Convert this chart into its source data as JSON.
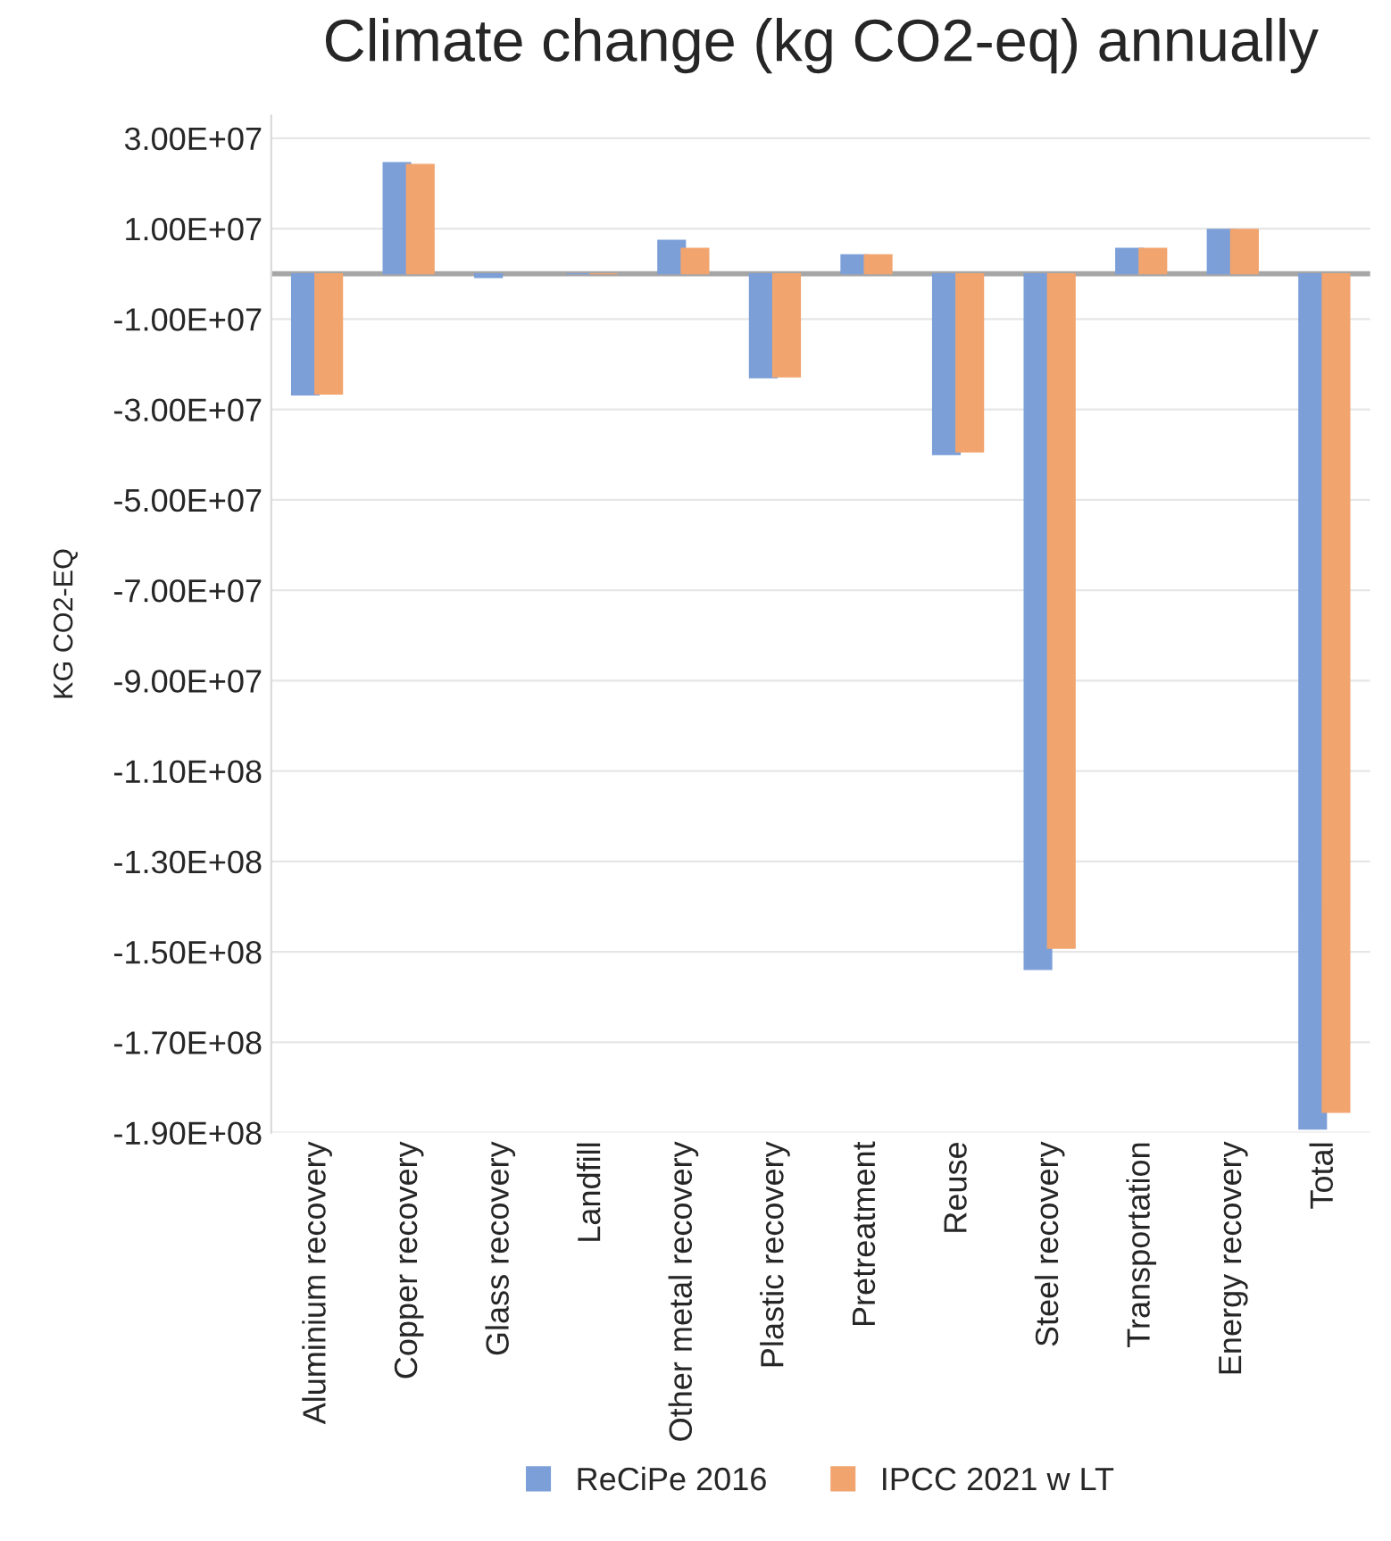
{
  "chart_data": {
    "type": "bar",
    "title": "Climate change (kg CO2-eq) annually",
    "ylabel": "KG CO2-EQ",
    "categories": [
      "Aluminium recovery",
      "Copper recovery",
      "Glass recovery",
      "Landfill",
      "Other metal recovery",
      "Plastic recovery",
      "Pretreatment",
      "Reuse",
      "Steel recovery",
      "Transportation",
      "Energy recovery",
      "Total"
    ],
    "series": [
      {
        "name": "ReCiPe 2016",
        "color": "#7c9fd8",
        "values": [
          -26800000,
          24600000,
          -800000,
          0,
          7400000,
          -23000000,
          4200000,
          -40000000,
          -153900000,
          5600000,
          9800000,
          -189200000
        ]
      },
      {
        "name": "IPCC 2021 w LT",
        "color": "#f2a46e",
        "values": [
          -26600000,
          24200000,
          null,
          0,
          5600000,
          -22800000,
          4200000,
          -39400000,
          -149200000,
          5600000,
          9800000,
          -185500000
        ]
      }
    ],
    "ylim": [
      -190000000,
      35000000
    ],
    "yticks": [
      {
        "value": 30000000,
        "label": "3.00E+07"
      },
      {
        "value": 10000000,
        "label": "1.00E+07"
      },
      {
        "value": -10000000,
        "label": "-1.00E+07"
      },
      {
        "value": -30000000,
        "label": "-3.00E+07"
      },
      {
        "value": -50000000,
        "label": "-5.00E+07"
      },
      {
        "value": -70000000,
        "label": "-7.00E+07"
      },
      {
        "value": -90000000,
        "label": "-9.00E+07"
      },
      {
        "value": -110000000,
        "label": "-1.10E+08"
      },
      {
        "value": -130000000,
        "label": "-1.30E+08"
      },
      {
        "value": -150000000,
        "label": "-1.50E+08"
      },
      {
        "value": -170000000,
        "label": "-1.70E+08"
      },
      {
        "value": -190000000,
        "label": "-1.90E+08"
      }
    ],
    "grid": "y",
    "legend": "bottom"
  }
}
